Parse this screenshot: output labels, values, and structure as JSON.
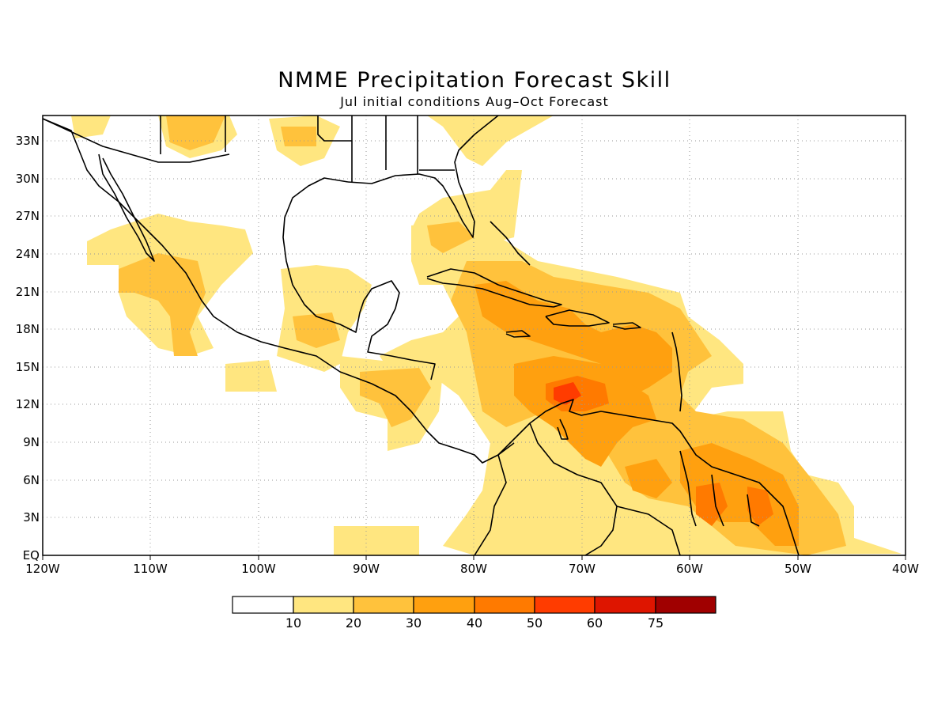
{
  "title": "NMME Precipitation Forecast Skill",
  "subtitle": "Jul initial conditions  Aug–Oct Forecast",
  "lon_labels": [
    "120W",
    "110W",
    "100W",
    "90W",
    "80W",
    "70W",
    "60W",
    "50W",
    "40W"
  ],
  "lat_labels": [
    "EQ",
    "3N",
    "6N",
    "9N",
    "12N",
    "15N",
    "18N",
    "21N",
    "24N",
    "27N",
    "30N",
    "33N"
  ],
  "colorbar": {
    "levels": [
      "10",
      "20",
      "30",
      "40",
      "50",
      "60",
      "75"
    ],
    "colors": [
      "#ffffff",
      "#ffe680",
      "#ffc23c",
      "#ffa00f",
      "#ff7a00",
      "#ff3c00",
      "#de1500",
      "#a00000"
    ]
  },
  "map_extent": {
    "lon": [
      -120,
      -40
    ],
    "lat": [
      0,
      35
    ]
  },
  "colors": {
    "coast": "#000000",
    "grid": "#999999"
  }
}
